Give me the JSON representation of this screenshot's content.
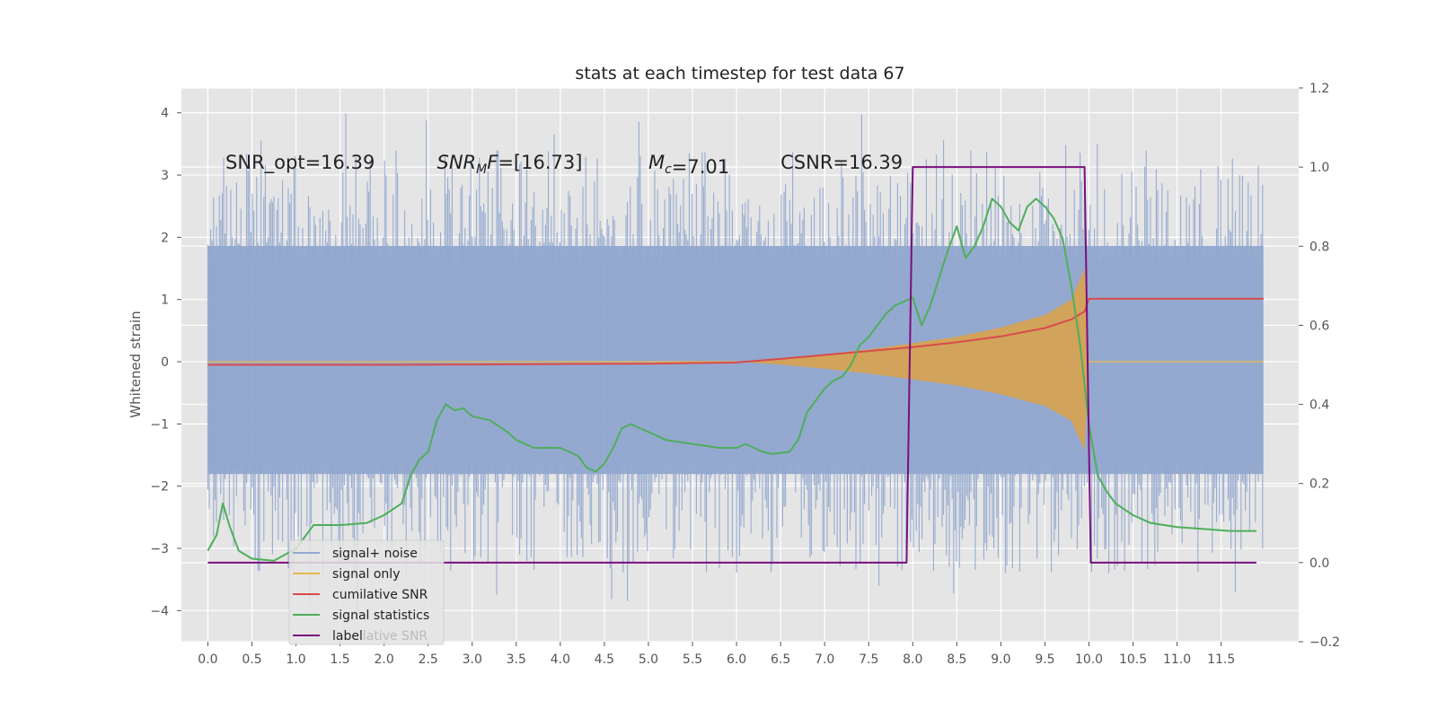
{
  "chart_data": {
    "type": "line",
    "title": "stats at each timestep for test data 67",
    "ylabel": "Whitened strain",
    "xlabel": "",
    "xlim": [
      -0.3,
      12.38
    ],
    "ylim": [
      -4.5,
      4.4
    ],
    "y2lim": [
      -0.2,
      1.2
    ],
    "grid": true,
    "x_ticks": [
      0.0,
      0.5,
      1.0,
      1.5,
      2.0,
      2.5,
      3.0,
      3.5,
      4.0,
      4.5,
      5.0,
      5.5,
      6.0,
      6.5,
      7.0,
      7.5,
      8.0,
      8.5,
      9.0,
      9.5,
      10.0,
      10.5,
      11.0,
      11.5
    ],
    "x_tick_labels": [
      "0.0",
      "0.5",
      "1.0",
      "1.5",
      "2.0",
      "2.5",
      "3.0",
      "3.5",
      "4.0",
      "4.5",
      "5.0",
      "5.5",
      "6.0",
      "6.5",
      "7.0",
      "7.5",
      "8.0",
      "8.5",
      "9.0",
      "9.5",
      "10.0",
      "10.5",
      "11.0",
      "11.5"
    ],
    "y_ticks": [
      4,
      3,
      2,
      1,
      0,
      -1,
      -2,
      -3,
      -4
    ],
    "y_tick_labels": [
      "4",
      "3",
      "2",
      "1",
      "0",
      "−1",
      "−2",
      "−3",
      "−4"
    ],
    "y2_ticks": [
      1.2,
      1.0,
      0.8,
      0.6,
      0.4,
      0.2,
      0.0,
      -0.2
    ],
    "y2_tick_labels": [
      "1.2",
      "1.0",
      "0.8",
      "0.6",
      "0.4",
      "0.2",
      "0.0",
      "−0.2"
    ],
    "annotations": [
      {
        "x": 0.2,
        "y": 3.2,
        "text": "SNR_opt=16.39",
        "italic_prefix": "",
        "subscript": "",
        "suffix": ""
      },
      {
        "x": 2.6,
        "y": 3.2,
        "text": "",
        "italic_prefix": "SNR",
        "subscript": "M",
        "suffix": "F",
        "rest": "=[16.73]"
      },
      {
        "x": 5.0,
        "y": 3.2,
        "text": "",
        "italic_prefix": "M",
        "subscript": "c",
        "suffix": "",
        "rest": "=7.01"
      },
      {
        "x": 6.5,
        "y": 3.2,
        "text": "CSNR=16.39",
        "italic_prefix": "",
        "subscript": "",
        "suffix": ""
      }
    ],
    "series": [
      {
        "name": "signal+ noise",
        "axis": "left",
        "color": "#92a8cf",
        "kind": "noise",
        "x_range": [
          0,
          11.98
        ],
        "envelope_core": 1.9,
        "peak_max": 4.0,
        "trough_min": -4.1
      },
      {
        "name": "signal only",
        "axis": "left",
        "color": "#e6b84f",
        "kind": "chirp",
        "x_range": [
          0,
          11.98
        ],
        "x": [
          6.0,
          6.5,
          7.0,
          7.5,
          8.0,
          8.5,
          9.0,
          9.5,
          9.8,
          9.95,
          10.0
        ],
        "amplitude": [
          0.0,
          0.05,
          0.12,
          0.2,
          0.3,
          0.4,
          0.55,
          0.75,
          1.0,
          1.5,
          0.0
        ]
      },
      {
        "name": "cumilative SNR",
        "axis": "right",
        "color": "#d94b4b",
        "kind": "line",
        "x": [
          0.0,
          1.0,
          2.0,
          3.0,
          4.0,
          5.0,
          6.0,
          6.5,
          7.0,
          7.5,
          8.0,
          8.5,
          9.0,
          9.5,
          9.8,
          9.95,
          10.0,
          11.98
        ],
        "y": [
          0.5,
          0.5,
          0.5,
          0.501,
          0.502,
          0.503,
          0.506,
          0.515,
          0.525,
          0.535,
          0.545,
          0.557,
          0.572,
          0.593,
          0.615,
          0.635,
          0.667,
          0.667
        ]
      },
      {
        "name": "signal statistics",
        "axis": "right",
        "color": "#4fae5b",
        "kind": "line",
        "x": [
          0.0,
          0.1,
          0.17,
          0.25,
          0.35,
          0.5,
          0.75,
          1.0,
          1.2,
          1.5,
          1.8,
          2.0,
          2.2,
          2.3,
          2.4,
          2.5,
          2.6,
          2.7,
          2.8,
          2.9,
          3.0,
          3.2,
          3.4,
          3.5,
          3.7,
          4.0,
          4.2,
          4.3,
          4.4,
          4.5,
          4.6,
          4.7,
          4.8,
          4.9,
          5.0,
          5.2,
          5.5,
          5.8,
          6.0,
          6.1,
          6.3,
          6.4,
          6.6,
          6.7,
          6.8,
          7.0,
          7.1,
          7.2,
          7.3,
          7.4,
          7.5,
          7.6,
          7.7,
          7.8,
          7.9,
          8.0,
          8.1,
          8.2,
          8.3,
          8.4,
          8.5,
          8.6,
          8.7,
          8.8,
          8.9,
          9.0,
          9.1,
          9.2,
          9.3,
          9.4,
          9.5,
          9.6,
          9.7,
          9.8,
          9.9,
          10.0,
          10.1,
          10.2,
          10.3,
          10.5,
          10.7,
          11.0,
          11.3,
          11.6,
          11.9
        ],
        "y": [
          0.03,
          0.07,
          0.15,
          0.09,
          0.03,
          0.01,
          0.005,
          0.035,
          0.095,
          0.095,
          0.1,
          0.12,
          0.15,
          0.22,
          0.26,
          0.28,
          0.36,
          0.4,
          0.385,
          0.39,
          0.37,
          0.36,
          0.33,
          0.31,
          0.29,
          0.29,
          0.27,
          0.24,
          0.23,
          0.25,
          0.29,
          0.34,
          0.35,
          0.34,
          0.33,
          0.31,
          0.3,
          0.29,
          0.29,
          0.3,
          0.28,
          0.275,
          0.28,
          0.31,
          0.38,
          0.44,
          0.46,
          0.47,
          0.5,
          0.55,
          0.57,
          0.6,
          0.63,
          0.65,
          0.66,
          0.67,
          0.6,
          0.65,
          0.72,
          0.79,
          0.85,
          0.77,
          0.8,
          0.85,
          0.92,
          0.9,
          0.86,
          0.84,
          0.9,
          0.92,
          0.9,
          0.87,
          0.82,
          0.7,
          0.55,
          0.35,
          0.22,
          0.18,
          0.15,
          0.12,
          0.1,
          0.09,
          0.085,
          0.08,
          0.08
        ]
      },
      {
        "name": "label",
        "axis": "right",
        "color": "#7a0f7e",
        "kind": "step",
        "x": [
          0.0,
          7.93,
          8.0,
          9.95,
          10.02,
          11.9
        ],
        "y": [
          0.0,
          0.0,
          1.0,
          1.0,
          0.0,
          0.0
        ]
      }
    ],
    "legend": {
      "placement": "lower-left",
      "entries": [
        {
          "label": "signal+ noise",
          "color": "#92a8cf"
        },
        {
          "label": "signal only",
          "color": "#e6b84f"
        },
        {
          "label": "cumilative SNR",
          "color": "#d94b4b"
        },
        {
          "label": "signal statistics",
          "color": "#4fae5b"
        },
        {
          "label": "label",
          "color": "#7a0f7e",
          "ghost_suffix": "lative SNR"
        }
      ]
    }
  }
}
